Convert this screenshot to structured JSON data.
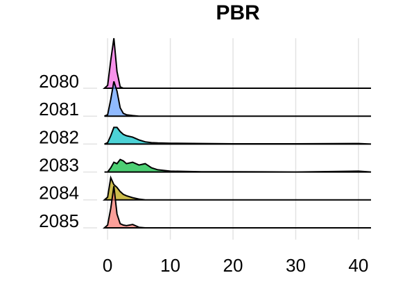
{
  "chart_data": {
    "type": "ridgeline",
    "title": "PBR",
    "categories": [
      "2080",
      "2081",
      "2082",
      "2083",
      "2084",
      "2085"
    ],
    "x": [
      -0.5,
      0,
      0.5,
      1,
      1.5,
      2,
      2.5,
      3,
      4,
      5,
      6,
      7,
      8,
      10,
      15,
      20,
      30,
      40,
      42
    ],
    "series": [
      {
        "name": "2080",
        "color": "#F564E3",
        "values": [
          0,
          0.1,
          1.0,
          1.8,
          0.6,
          0.05,
          0,
          0,
          0,
          0,
          0,
          0,
          0,
          0,
          0,
          0,
          0,
          0,
          0
        ]
      },
      {
        "name": "2081",
        "color": "#619CFF",
        "values": [
          0,
          0.05,
          0.6,
          1.25,
          0.9,
          0.3,
          0.1,
          0.05,
          0.02,
          0,
          0,
          0,
          0,
          0,
          0,
          0,
          0,
          0,
          0
        ]
      },
      {
        "name": "2082",
        "color": "#00BFC4",
        "values": [
          0,
          0.05,
          0.3,
          0.6,
          0.6,
          0.45,
          0.35,
          0.3,
          0.25,
          0.15,
          0.08,
          0.05,
          0.04,
          0.03,
          0.02,
          0.01,
          0.01,
          0.02,
          0
        ]
      },
      {
        "name": "2083",
        "color": "#00BA38",
        "values": [
          0,
          0,
          0.15,
          0.35,
          0.3,
          0.45,
          0.4,
          0.3,
          0.35,
          0.25,
          0.3,
          0.15,
          0.08,
          0.03,
          0.01,
          0.01,
          0,
          0.03,
          0
        ]
      },
      {
        "name": "2084",
        "color": "#B79F00",
        "values": [
          0,
          0.1,
          0.8,
          0.55,
          0.45,
          0.3,
          0.2,
          0.15,
          0.08,
          0.03,
          0,
          0,
          0,
          0,
          0,
          0,
          0,
          0,
          0
        ]
      },
      {
        "name": "2085",
        "color": "#F8766D",
        "values": [
          0,
          0.1,
          0.7,
          1.5,
          0.5,
          0.15,
          0.1,
          0.08,
          0.12,
          0.02,
          0,
          0,
          0,
          0,
          0,
          0,
          0,
          0,
          0
        ]
      }
    ],
    "xlim": [
      -4,
      43
    ],
    "xticks": [
      0,
      10,
      20,
      30,
      40
    ],
    "grid": true
  }
}
